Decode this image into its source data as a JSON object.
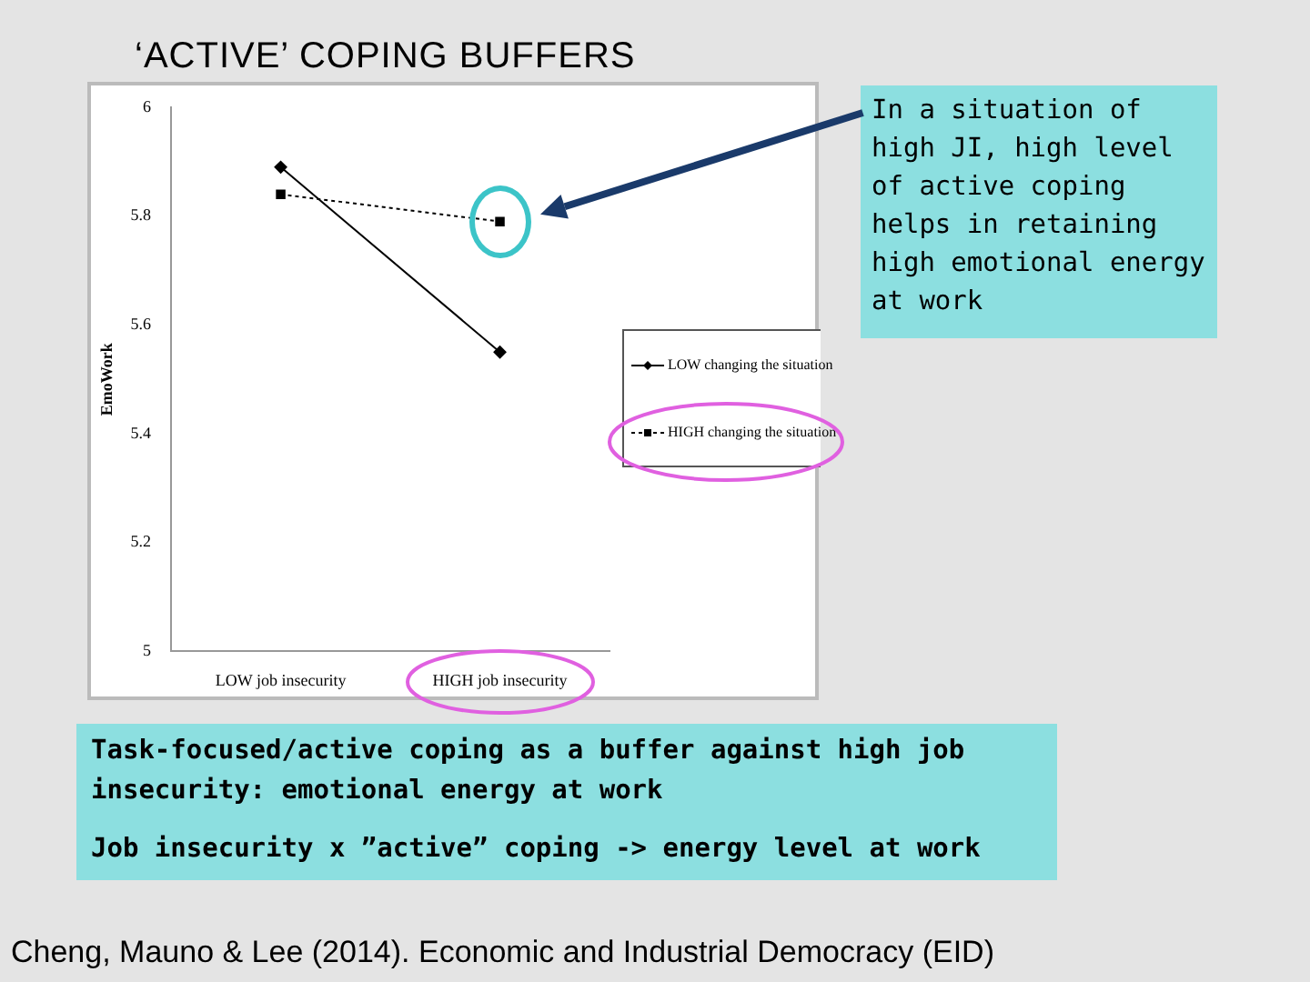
{
  "chart_data": {
    "type": "line",
    "title": "‘ACTIVE’ COPING BUFFERS",
    "ylabel": "EmoWork",
    "categories": [
      "LOW job insecurity",
      "HIGH job insecurity"
    ],
    "series": [
      {
        "name": "LOW changing the situation",
        "color": "#000000",
        "values": [
          5.89,
          5.55
        ],
        "marker": "diamond",
        "line_style": "solid"
      },
      {
        "name": "HIGH changing the situation",
        "color": "#000000",
        "values": [
          5.84,
          5.79
        ],
        "marker": "square",
        "line_style": "dotted"
      }
    ],
    "ylim": [
      5,
      6
    ],
    "yticks": [
      5,
      5.2,
      5.4,
      5.6,
      5.8,
      6
    ],
    "grid": false,
    "legend": "right",
    "annotations": [
      "In a situation of high JI, high level of active coping helps in retaining high emotional energy at work",
      "Task-focused/active coping as a buffer against high job insecurity: emotional energy at work",
      "Job insecurity x ”active” coping -> energy level at work",
      "Cheng, Mauno & Lee (2014). Economic and Industrial Democracy (EID)"
    ]
  }
}
